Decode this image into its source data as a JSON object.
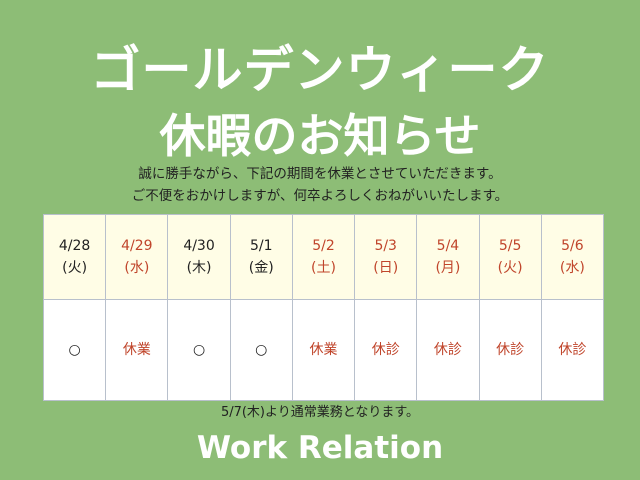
{
  "title_line1": "ゴールデンウィーク",
  "title_line2": "休暇のお知らせ",
  "message_line1": "誠に勝手ながら、下記の期間を休業とさせていただきます。",
  "message_line2": "ご不便をおかけしますが、何卒よろしくおねがいいたします。",
  "schedule": [
    {
      "date": "4/28",
      "day": "(火)",
      "status": "○",
      "holiday": false
    },
    {
      "date": "4/29",
      "day": "(水)",
      "status": "休業",
      "holiday": true
    },
    {
      "date": "4/30",
      "day": "(木)",
      "status": "○",
      "holiday": false
    },
    {
      "date": "5/1",
      "day": "(金)",
      "status": "○",
      "holiday": false
    },
    {
      "date": "5/2",
      "day": "(土)",
      "status": "休業",
      "holiday": true
    },
    {
      "date": "5/3",
      "day": "(日)",
      "status": "休診",
      "holiday": true
    },
    {
      "date": "5/4",
      "day": "(月)",
      "status": "休診",
      "holiday": true
    },
    {
      "date": "5/5",
      "day": "(火)",
      "status": "休診",
      "holiday": true
    },
    {
      "date": "5/6",
      "day": "(水)",
      "status": "休診",
      "holiday": true
    }
  ],
  "footer_note": "5/7(木)より通常業務となります。",
  "brand": "Work Relation",
  "colors": {
    "background": "#8dbd76",
    "header_cell": "#fffde6",
    "holiday_text": "#c0452b"
  }
}
